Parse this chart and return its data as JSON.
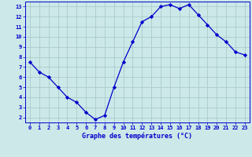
{
  "hours": [
    0,
    1,
    2,
    3,
    4,
    5,
    6,
    7,
    8,
    9,
    10,
    11,
    12,
    13,
    14,
    15,
    16,
    17,
    18,
    19,
    20,
    21,
    22,
    23
  ],
  "temps": [
    7.5,
    6.5,
    6.0,
    5.0,
    4.0,
    3.5,
    2.5,
    1.8,
    2.2,
    5.0,
    7.5,
    9.5,
    11.5,
    12.0,
    13.0,
    13.2,
    12.8,
    13.2,
    12.2,
    11.2,
    10.2,
    9.5,
    8.5,
    8.2
  ],
  "line_color": "#0000cc",
  "marker": "D",
  "marker_size": 2.2,
  "bg_color": "#cce8e8",
  "grid_color": "#aacccc",
  "xlabel": "Graphe des températures (°C)",
  "xlabel_color": "#0000cc",
  "ylabel_ticks": [
    2,
    3,
    4,
    5,
    6,
    7,
    8,
    9,
    10,
    11,
    12,
    13
  ],
  "xlim": [
    -0.5,
    23.5
  ],
  "ylim": [
    1.5,
    13.5
  ],
  "tick_color": "#0000cc",
  "axis_color": "#0000cc",
  "tick_fontsize": 5.0,
  "xlabel_fontsize": 6.0
}
